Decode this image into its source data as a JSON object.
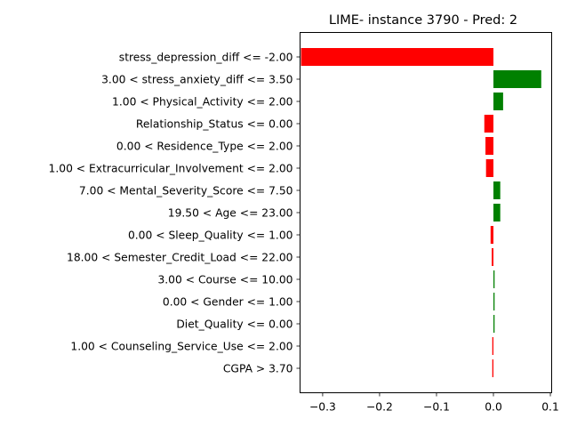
{
  "chart_data": {
    "type": "bar",
    "orientation": "horizontal",
    "title": "LIME- instance 3790 - Pred: 2",
    "xlabel": "",
    "ylabel": "",
    "xlim": [
      -0.338,
      0.104
    ],
    "xticks": [
      -0.3,
      -0.2,
      -0.1,
      0.0,
      0.1
    ],
    "xtick_labels": [
      "−0.3",
      "−0.2",
      "−0.1",
      "0.0",
      "0.1"
    ],
    "positive_color": "#008000",
    "negative_color": "#ff0000",
    "grid": false,
    "bars": [
      {
        "label": "stress_depression_diff <= -2.00",
        "value": -0.338
      },
      {
        "label": "3.00 < stress_anxiety_diff <= 3.50",
        "value": 0.084
      },
      {
        "label": "1.00 < Physical_Activity <= 2.00",
        "value": 0.017
      },
      {
        "label": "Relationship_Status <= 0.00",
        "value": -0.016
      },
      {
        "label": "0.00 < Residence_Type <= 2.00",
        "value": -0.014
      },
      {
        "label": "1.00 < Extracurricular_Involvement <= 2.00",
        "value": -0.013
      },
      {
        "label": "7.00 < Mental_Severity_Score <= 7.50",
        "value": 0.012
      },
      {
        "label": "19.50 < Age <= 23.00",
        "value": 0.012
      },
      {
        "label": "0.00 < Sleep_Quality <= 1.00",
        "value": -0.005
      },
      {
        "label": "18.00 < Semester_Credit_Load <= 22.00",
        "value": -0.003
      },
      {
        "label": "3.00 < Course <= 10.00",
        "value": 0.002
      },
      {
        "label": "0.00 < Gender <= 1.00",
        "value": 0.002
      },
      {
        "label": "Diet_Quality <= 0.00",
        "value": 0.002
      },
      {
        "label": "1.00 < Counseling_Service_Use <= 2.00",
        "value": -0.002
      },
      {
        "label": "CGPA > 3.70",
        "value": -0.002
      }
    ]
  }
}
